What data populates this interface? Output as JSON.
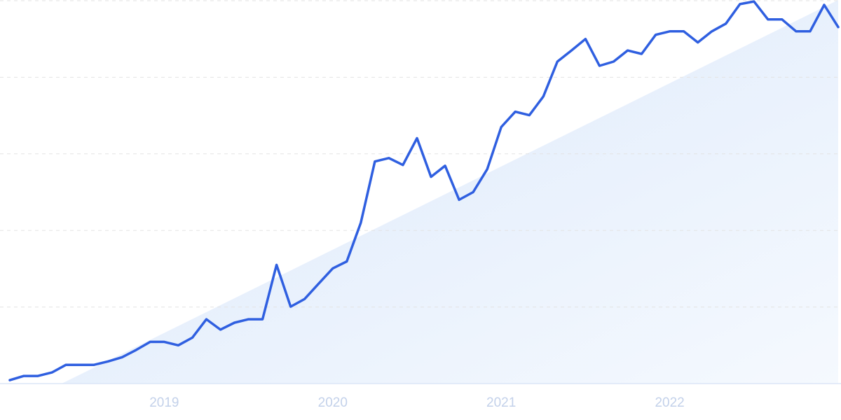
{
  "chart_data": {
    "type": "line",
    "categories": [
      null,
      null,
      null,
      null,
      null,
      null,
      null,
      null,
      null,
      null,
      null,
      "2019",
      null,
      null,
      null,
      null,
      null,
      null,
      null,
      null,
      null,
      null,
      null,
      "2020",
      null,
      null,
      null,
      null,
      null,
      null,
      null,
      null,
      null,
      null,
      null,
      "2021",
      null,
      null,
      null,
      null,
      null,
      null,
      null,
      null,
      null,
      null,
      null,
      "2022",
      null,
      null,
      null,
      null,
      null,
      null,
      null,
      null,
      null,
      null,
      null,
      null
    ],
    "values": [
      0.9,
      2.0,
      2.0,
      2.9,
      4.9,
      4.9,
      4.9,
      5.8,
      6.9,
      8.8,
      10.9,
      10.9,
      10.0,
      12.0,
      16.8,
      14.1,
      15.9,
      16.8,
      16.8,
      31.0,
      20.1,
      22.1,
      26.1,
      30.1,
      31.9,
      42.0,
      58.0,
      58.9,
      57.1,
      64.1,
      54.0,
      56.9,
      48.0,
      50.0,
      56.0,
      67.0,
      71.0,
      70.1,
      75.0,
      84.1,
      87.0,
      90.0,
      83.0,
      84.1,
      87.0,
      86.1,
      91.1,
      92.0,
      92.0,
      89.1,
      92.0,
      94.0,
      99.1,
      99.8,
      95.1,
      95.1,
      92.0,
      92.0,
      98.9,
      93.1
    ],
    "color": "#2f5fe0",
    "ylim": [
      0,
      100
    ],
    "yticks": [
      0,
      20,
      40,
      60,
      80,
      100
    ],
    "grid": true
  }
}
